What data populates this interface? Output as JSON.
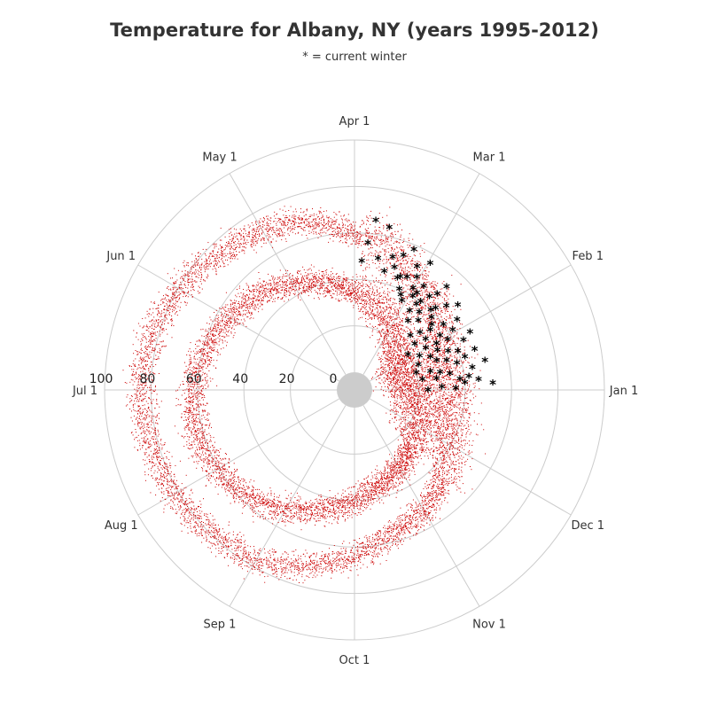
{
  "chart_data": {
    "type": "scatter",
    "coordinate_system": "polar",
    "title": "Temperature for Albany, NY (years 1995-2012)",
    "subtitle": "* = current winter",
    "angular_axis": {
      "labels": [
        "Jan 1",
        "Feb 1",
        "Mar 1",
        "Apr 1",
        "May 1",
        "Jun 1",
        "Jul 1",
        "Aug 1",
        "Sep 1",
        "Oct 1",
        "Nov 1",
        "Dec 1"
      ],
      "direction": "counterclockwise",
      "zero_label": "Jan 1",
      "zero_position": "right"
    },
    "radial_axis": {
      "min": 0,
      "max": 100,
      "ticks": [
        0,
        20,
        40,
        60,
        80,
        100
      ],
      "tick_labels": [
        "0",
        "20",
        "40",
        "60",
        "80",
        "100"
      ]
    },
    "grid": true,
    "series": [
      {
        "marker": "dot",
        "color": "#cc0000",
        "data_note": "daily high/low, all years",
        "bands_hi": [
          [
            1,
            34
          ],
          [
            15,
            32
          ],
          [
            32,
            35
          ],
          [
            46,
            40
          ],
          [
            60,
            44
          ],
          [
            74,
            54
          ],
          [
            91,
            59
          ],
          [
            105,
            67
          ],
          [
            121,
            71
          ],
          [
            135,
            75
          ],
          [
            152,
            79
          ],
          [
            166,
            83
          ],
          [
            182,
            84
          ],
          [
            196,
            84
          ],
          [
            213,
            82
          ],
          [
            227,
            80
          ],
          [
            244,
            77
          ],
          [
            258,
            71
          ],
          [
            274,
            64
          ],
          [
            288,
            57
          ],
          [
            305,
            52
          ],
          [
            319,
            46
          ],
          [
            335,
            40
          ],
          [
            349,
            36
          ],
          [
            365,
            34
          ]
        ],
        "bands_lo": [
          [
            1,
            17
          ],
          [
            15,
            15
          ],
          [
            32,
            15
          ],
          [
            46,
            18
          ],
          [
            60,
            23
          ],
          [
            74,
            30
          ],
          [
            91,
            35
          ],
          [
            105,
            40
          ],
          [
            121,
            45
          ],
          [
            135,
            50
          ],
          [
            152,
            55
          ],
          [
            166,
            59
          ],
          [
            182,
            62
          ],
          [
            196,
            63
          ],
          [
            213,
            61
          ],
          [
            227,
            58
          ],
          [
            244,
            52
          ],
          [
            258,
            46
          ],
          [
            274,
            40
          ],
          [
            288,
            35
          ],
          [
            305,
            31
          ],
          [
            319,
            27
          ],
          [
            335,
            23
          ],
          [
            349,
            20
          ],
          [
            365,
            17
          ]
        ]
      },
      {
        "marker": "star",
        "color": "#000000",
        "points": [
          [
            1,
            24
          ],
          [
            2,
            36
          ],
          [
            3,
            30
          ],
          [
            4,
            52
          ],
          [
            5,
            40
          ],
          [
            6,
            46
          ],
          [
            7,
            38
          ],
          [
            8,
            42
          ],
          [
            9,
            28
          ],
          [
            10,
            22
          ],
          [
            11,
            34
          ],
          [
            12,
            44
          ],
          [
            13,
            30
          ],
          [
            14,
            50
          ],
          [
            15,
            26
          ],
          [
            16,
            38
          ],
          [
            17,
            20
          ],
          [
            18,
            42
          ],
          [
            19,
            34
          ],
          [
            20,
            47
          ],
          [
            21,
            30
          ],
          [
            22,
            40
          ],
          [
            23,
            22
          ],
          [
            24,
            36
          ],
          [
            25,
            28
          ],
          [
            26,
            44
          ],
          [
            27,
            32
          ],
          [
            28,
            48
          ],
          [
            29,
            24
          ],
          [
            30,
            38
          ],
          [
            31,
            33
          ],
          [
            32,
            28
          ],
          [
            33,
            42
          ],
          [
            34,
            36
          ],
          [
            35,
            20
          ],
          [
            36,
            46
          ],
          [
            37,
            30
          ],
          [
            38,
            40
          ],
          [
            39,
            25
          ],
          [
            40,
            34
          ],
          [
            41,
            50
          ],
          [
            42,
            36
          ],
          [
            43,
            30
          ],
          [
            44,
            46
          ],
          [
            45,
            38
          ],
          [
            46,
            26
          ],
          [
            47,
            42
          ],
          [
            48,
            40
          ],
          [
            49,
            33
          ],
          [
            50,
            52
          ],
          [
            51,
            47
          ],
          [
            52,
            36
          ],
          [
            53,
            44
          ],
          [
            54,
            30
          ],
          [
            55,
            40
          ],
          [
            56,
            38
          ],
          [
            57,
            34
          ],
          [
            58,
            46
          ],
          [
            59,
            42
          ],
          [
            60,
            40
          ],
          [
            61,
            56
          ],
          [
            62,
            43
          ],
          [
            63,
            48
          ],
          [
            64,
            36
          ],
          [
            65,
            52
          ],
          [
            66,
            38
          ],
          [
            67,
            46
          ],
          [
            68,
            40
          ],
          [
            69,
            58
          ],
          [
            70,
            45
          ],
          [
            71,
            44
          ],
          [
            72,
            54
          ],
          [
            74,
            48
          ],
          [
            76,
            52
          ],
          [
            78,
            45
          ],
          [
            80,
            64
          ],
          [
            82,
            50
          ],
          [
            85,
            66
          ],
          [
            87,
            56
          ],
          [
            89,
            48
          ]
        ]
      }
    ]
  }
}
